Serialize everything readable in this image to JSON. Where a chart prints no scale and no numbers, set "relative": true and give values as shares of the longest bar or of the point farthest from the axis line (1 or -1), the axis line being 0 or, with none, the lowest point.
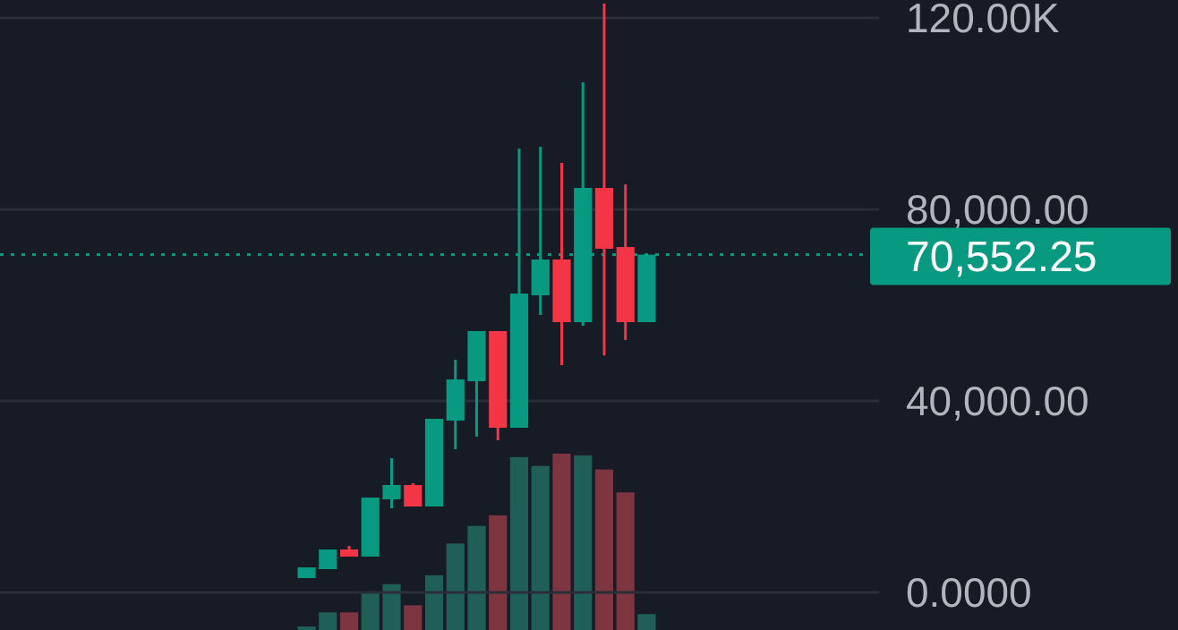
{
  "chart_data": [
    {
      "type": "candlestick",
      "categories": [
        null,
        null,
        null,
        null,
        null,
        null,
        null,
        null,
        null,
        null,
        null,
        null,
        null,
        null,
        null,
        null,
        null,
        null,
        null,
        null,
        null,
        null,
        null,
        null,
        null,
        null,
        null,
        null,
        null,
        null,
        null,
        null,
        null,
        null,
        null,
        null,
        null,
        null,
        null,
        null,
        null
      ],
      "ohlc": [
        null,
        null,
        null,
        null,
        null,
        null,
        null,
        null,
        null,
        null,
        null,
        null,
        null,
        null,
        [
          2990,
          5233,
          2990,
          5233
        ],
        [
          4860,
          8970,
          4860,
          8970
        ],
        [
          8970,
          9720,
          7480,
          7480
        ],
        [
          7480,
          19810,
          7480,
          19810
        ],
        [
          19440,
          28030,
          17570,
          22430
        ],
        [
          22430,
          22800,
          17940,
          17940
        ],
        [
          17940,
          36260,
          17940,
          36260
        ],
        [
          35880,
          48590,
          29900,
          44480
        ],
        [
          44110,
          54580,
          32520,
          54580
        ],
        [
          54580,
          54580,
          31770,
          34390
        ],
        [
          34390,
          92700,
          34390,
          62420
        ],
        [
          62050,
          93080,
          57940,
          69530
        ],
        [
          69530,
          89710,
          47470,
          56440
        ],
        [
          56440,
          106530,
          55700,
          84480
        ],
        [
          84480,
          123000,
          49500,
          71770
        ],
        [
          72140,
          85220,
          52700,
          56440
        ],
        [
          56440,
          70552.25,
          56440,
          70552.25
        ],
        null,
        null,
        null,
        null,
        null,
        null,
        null,
        null,
        null,
        null
      ],
      "colors": [
        null,
        null,
        null,
        null,
        null,
        null,
        null,
        null,
        null,
        null,
        null,
        null,
        null,
        null,
        "#089981",
        "#089981",
        "#f23645",
        "#089981",
        "#089981",
        "#f23645",
        "#089981",
        "#089981",
        "#089981",
        "#f23645",
        "#089981",
        "#089981",
        "#f23645",
        "#089981",
        "#f23645",
        "#f23645",
        "#089981",
        null,
        null,
        null,
        null,
        null,
        null,
        null,
        null,
        null,
        null
      ],
      "ylim": [
        -7850,
        123730
      ],
      "yticks": [
        {
          "value": 0,
          "label": "0.0000"
        },
        {
          "value": 40000,
          "label": "40,000.00"
        },
        {
          "value": 80000,
          "label": "80,000.00"
        },
        {
          "value": 120000,
          "label": "120.00K"
        }
      ],
      "tick_labels": "y",
      "grid": "y",
      "ref_lines": [
        {
          "axis": "y",
          "value": 70552.25,
          "label": "70,552.25",
          "color": "#089981",
          "line_style": "dotted"
        }
      ]
    },
    {
      "type": "bar",
      "relative": true,
      "categories": [
        null,
        null,
        null,
        null,
        null,
        null,
        null,
        null,
        null,
        null,
        null,
        null,
        null,
        null,
        null,
        null,
        null,
        null,
        null,
        null,
        null,
        null,
        null,
        null,
        null,
        null,
        null,
        null,
        null,
        null,
        null,
        null,
        null,
        null,
        null,
        null,
        null,
        null,
        null,
        null,
        null
      ],
      "values": [
        null,
        null,
        null,
        null,
        null,
        null,
        null,
        null,
        null,
        null,
        null,
        null,
        null,
        null,
        0.02,
        0.1,
        0.1,
        0.21,
        0.26,
        0.14,
        0.31,
        0.49,
        0.59,
        0.65,
        0.98,
        0.93,
        1,
        0.99,
        0.91,
        0.78,
        0.09,
        null,
        null,
        null,
        null,
        null,
        null,
        null,
        null,
        null,
        null
      ],
      "colors": [
        null,
        null,
        null,
        null,
        null,
        null,
        null,
        null,
        null,
        null,
        null,
        null,
        null,
        null,
        "#1f5f58",
        "#1f5f58",
        "#7d3540",
        "#1f5f58",
        "#1f5f58",
        "#7d3540",
        "#1f5f58",
        "#1f5f58",
        "#1f5f58",
        "#7d3540",
        "#1f5f58",
        "#1f5f58",
        "#7d3540",
        "#1f5f58",
        "#7d3540",
        "#7d3540",
        "#1f5f58",
        null,
        null,
        null,
        null,
        null,
        null,
        null,
        null,
        null,
        null
      ]
    }
  ]
}
